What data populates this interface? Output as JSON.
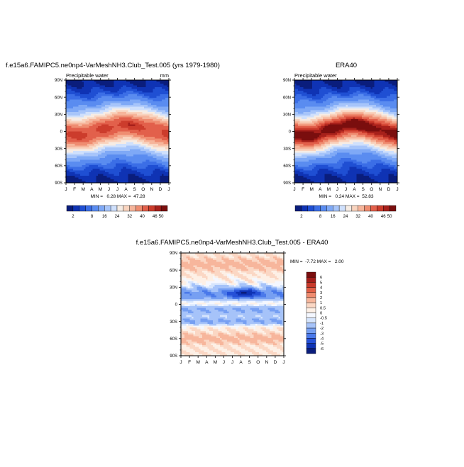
{
  "chart_data": [
    {
      "type": "heatmap",
      "title": "f.e15a6.FAMIPC5.ne0np4-VarMeshNH3.Club_Test.005 (yrs 1979-1980)",
      "left_label": "Precipitable water",
      "right_label": "mm",
      "stats": "MIN =   0.28 MAX =  47.28",
      "min": 0.28,
      "max": 47.28,
      "x_ticks": [
        "J",
        "F",
        "M",
        "A",
        "M",
        "J",
        "J",
        "A",
        "S",
        "O",
        "N",
        "D",
        "J"
      ],
      "y_ticks": [
        "90N",
        "60N",
        "30N",
        "0",
        "30S",
        "60S",
        "90S"
      ],
      "y_range": [
        -90,
        90
      ],
      "field": {
        "kind": "climo",
        "peak": 45.5,
        "trop_width": 23,
        "seasonal_shift": 8,
        "tail": 0.6,
        "floor": 0.3
      },
      "colorbar_labels": [
        "2",
        "8",
        "16",
        "24",
        "32",
        "40",
        "46",
        "50"
      ],
      "contour_levels": [
        2,
        4,
        6,
        8,
        12,
        16,
        20,
        24,
        28,
        32,
        36,
        40,
        44,
        46,
        48,
        50
      ]
    },
    {
      "type": "heatmap",
      "title": "ERA40",
      "left_label": "Precipitable water",
      "right_label": "",
      "stats": "MIN =   0.24 MAX =  52.83",
      "min": 0.24,
      "max": 52.83,
      "x_ticks": [
        "J",
        "F",
        "M",
        "A",
        "M",
        "J",
        "J",
        "A",
        "S",
        "O",
        "N",
        "D",
        "J"
      ],
      "y_ticks": [
        "90N",
        "60N",
        "30N",
        "0",
        "30S",
        "60S",
        "90S"
      ],
      "y_range": [
        -90,
        90
      ],
      "field": {
        "kind": "climo",
        "peak": 52,
        "trop_width": 22,
        "seasonal_shift": 9,
        "tail": 0.55,
        "floor": 0.25
      },
      "colorbar_labels": [
        "2",
        "8",
        "16",
        "24",
        "32",
        "40",
        "46",
        "50"
      ],
      "contour_levels": [
        2,
        4,
        6,
        8,
        12,
        16,
        20,
        24,
        28,
        32,
        36,
        40,
        44,
        46,
        48,
        50
      ]
    },
    {
      "type": "heatmap",
      "title": "f.e15a6.FAMIPC5.ne0np4-VarMeshNH3.Club_Test.005 - ERA40",
      "stats": "MIN =  -7.72 MAX =   2.00",
      "min": -7.72,
      "max": 2.0,
      "x_ticks": [
        "J",
        "F",
        "M",
        "A",
        "M",
        "J",
        "J",
        "A",
        "S",
        "O",
        "N",
        "D",
        "J"
      ],
      "y_ticks": [
        "90N",
        "60N",
        "30N",
        "0",
        "30S",
        "60S",
        "90S"
      ],
      "y_range": [
        -90,
        90
      ],
      "field": {
        "kind": "diff"
      },
      "colorbar_labels": [
        "6",
        "5",
        "4",
        "3",
        "2",
        "1",
        "0.5",
        "0",
        "-0.5",
        "-1",
        "-2",
        "-3",
        "-4",
        "-5",
        "-6"
      ],
      "contour_levels": [
        -6,
        -5,
        -4,
        -3,
        -2,
        -1,
        -0.5,
        0,
        0.5,
        1,
        2,
        3,
        4,
        5,
        6
      ]
    }
  ],
  "colors": {
    "climo": [
      "#0a1d7c",
      "#0f33b4",
      "#1f4fd3",
      "#3b6ee6",
      "#5a8cf0",
      "#7fa9f6",
      "#a7c5fa",
      "#cfe0fc",
      "#f6ece4",
      "#f9d4bf",
      "#f6b59b",
      "#ef8d71",
      "#e2604b",
      "#cc3c2c",
      "#a7201b",
      "#7a0e0e"
    ],
    "diff": [
      "#0a1d7c",
      "#0f33b4",
      "#2550d7",
      "#4a79ea",
      "#769ff2",
      "#a6c3f9",
      "#d6e5fd",
      "#f4f7ff",
      "#fdf0e6",
      "#fbd7c4",
      "#f7b69c",
      "#ef8b6f",
      "#e15e46",
      "#c8392a",
      "#a31d1a",
      "#7a0e0e"
    ]
  }
}
